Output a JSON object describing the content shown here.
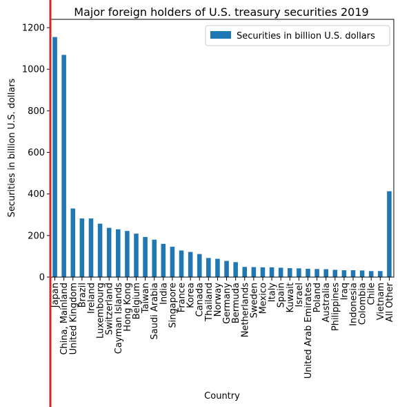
{
  "colors": {
    "bar": "#1f77b4",
    "marker_line": "#d62728"
  },
  "chart_data": {
    "type": "bar",
    "title": "Major foreign holders of U.S. treasury securities 2019",
    "xlabel": "Country",
    "ylabel": "Securities in billion U.S. dollars",
    "ylim": [
      0,
      1240
    ],
    "yticks": [
      0,
      200,
      400,
      600,
      800,
      1000,
      1200
    ],
    "grid": false,
    "legend_position": "top-right",
    "categories": [
      "Japan",
      "China, Mainland",
      "United Kingdom",
      "Brazil",
      "Ireland",
      "Luxembourg",
      "Switzerland",
      "Cayman Islands",
      "Hong Kong",
      "Belgium",
      "Taiwan",
      "Saudi Arabia",
      "India",
      "Singapore",
      "France",
      "Korea",
      "Canada",
      "Thailand",
      "Norway",
      "Germany",
      "Bermuda",
      "Netherlands",
      "Sweden",
      "Mexico",
      "Italy",
      "Spain",
      "Kuwait",
      "Israel",
      "United Arab Emirates",
      "Poland",
      "Australia",
      "Philippines",
      "Iraq",
      "Indonesia",
      "Colombia",
      "Chile",
      "Vietnam",
      "All Other"
    ],
    "series": [
      {
        "name": "Securities in billion U.S. dollars",
        "values": [
          1155,
          1069,
          330,
          282,
          282,
          257,
          237,
          230,
          222,
          209,
          193,
          180,
          160,
          146,
          128,
          121,
          111,
          92,
          88,
          78,
          72,
          49,
          48,
          47,
          47,
          45,
          43,
          42,
          40,
          39,
          38,
          35,
          33,
          33,
          32,
          29,
          29,
          413
        ]
      }
    ]
  }
}
